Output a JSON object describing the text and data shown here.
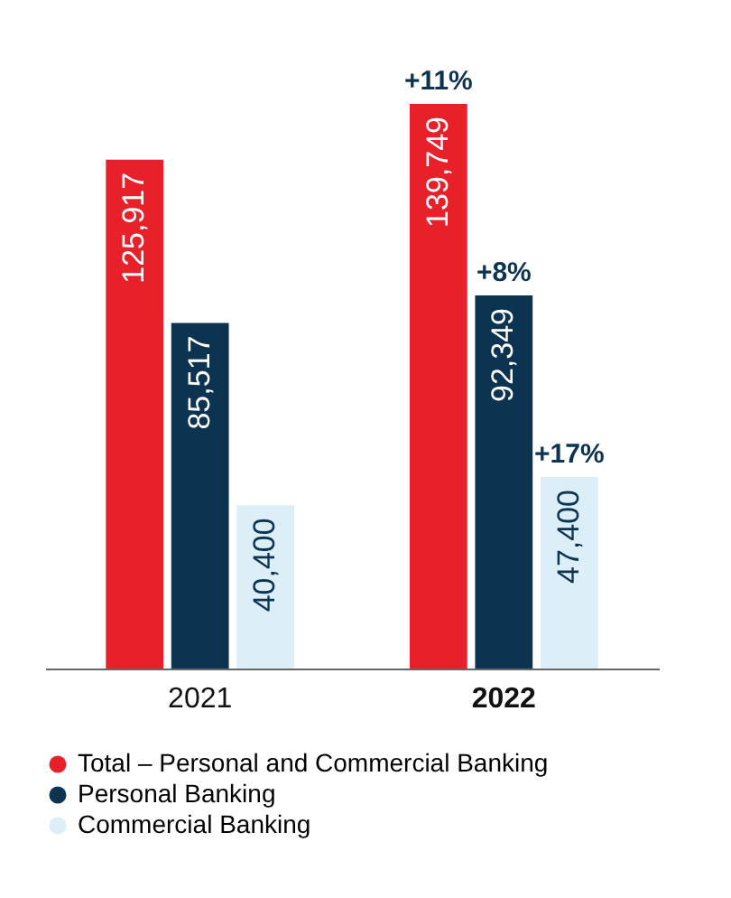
{
  "chart_data": {
    "type": "bar",
    "categories": [
      "2021",
      "2022"
    ],
    "series": [
      {
        "name": "Total – Personal and Commercial Banking",
        "color": "#e8202a",
        "values": [
          125917,
          139749
        ],
        "value_labels": [
          "125,917",
          "139,749"
        ]
      },
      {
        "name": "Personal Banking",
        "color": "#0c3350",
        "values": [
          85517,
          92349
        ],
        "value_labels": [
          "85,517",
          "92,349"
        ]
      },
      {
        "name": "Commercial Banking",
        "color": "#dceff8",
        "values": [
          40400,
          47400
        ],
        "value_labels": [
          "40,400",
          "47,400"
        ]
      }
    ],
    "annotations": [
      "+11%",
      "+8%",
      "+17%"
    ],
    "grid": false,
    "legend": "bottom",
    "marker": "circle",
    "tick_labels": "x"
  }
}
